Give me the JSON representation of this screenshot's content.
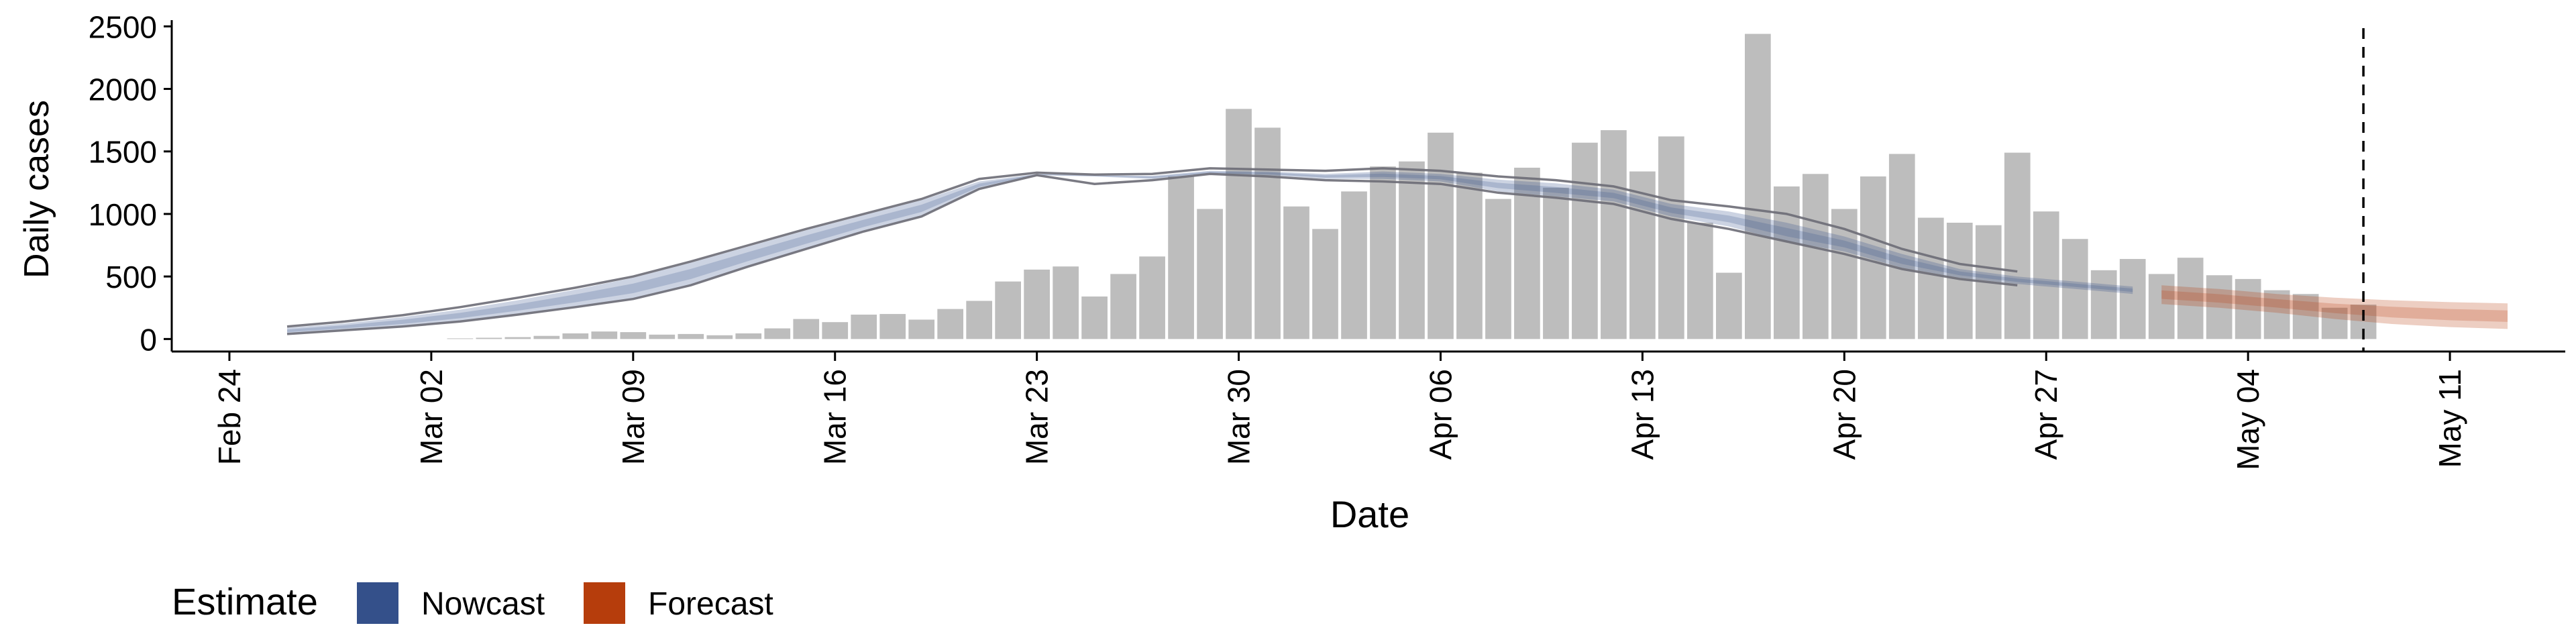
{
  "chart_data": {
    "type": "bar",
    "xlabel": "Date",
    "ylabel": "Daily cases",
    "x_axis": {
      "start": "2020-02-22",
      "end": "2020-05-15",
      "ticks": [
        "2020-02-24",
        "2020-03-02",
        "2020-03-09",
        "2020-03-16",
        "2020-03-23",
        "2020-03-30",
        "2020-04-06",
        "2020-04-13",
        "2020-04-20",
        "2020-04-27",
        "2020-05-04",
        "2020-05-11"
      ],
      "tick_labels": [
        "Feb 24",
        "Mar 02",
        "Mar 09",
        "Mar 16",
        "Mar 23",
        "Mar 30",
        "Apr 06",
        "Apr 13",
        "Apr 20",
        "Apr 27",
        "May 04",
        "May 11"
      ]
    },
    "y_axis": {
      "ylim": [
        -100,
        2550
      ],
      "ticks": [
        0,
        500,
        1000,
        1500,
        2000,
        2500
      ]
    },
    "bars": {
      "color": "#bdbdbd",
      "dates": [
        "2020-03-03",
        "2020-03-04",
        "2020-03-05",
        "2020-03-06",
        "2020-03-07",
        "2020-03-08",
        "2020-03-09",
        "2020-03-10",
        "2020-03-11",
        "2020-03-12",
        "2020-03-13",
        "2020-03-14",
        "2020-03-15",
        "2020-03-16",
        "2020-03-17",
        "2020-03-18",
        "2020-03-19",
        "2020-03-20",
        "2020-03-21",
        "2020-03-22",
        "2020-03-23",
        "2020-03-24",
        "2020-03-25",
        "2020-03-26",
        "2020-03-27",
        "2020-03-28",
        "2020-03-29",
        "2020-03-30",
        "2020-03-31",
        "2020-04-01",
        "2020-04-02",
        "2020-04-03",
        "2020-04-04",
        "2020-04-05",
        "2020-04-06",
        "2020-04-07",
        "2020-04-08",
        "2020-04-09",
        "2020-04-10",
        "2020-04-11",
        "2020-04-12",
        "2020-04-13",
        "2020-04-14",
        "2020-04-15",
        "2020-04-16",
        "2020-04-17",
        "2020-04-18",
        "2020-04-19",
        "2020-04-20",
        "2020-04-21",
        "2020-04-22",
        "2020-04-23",
        "2020-04-24",
        "2020-04-25",
        "2020-04-26",
        "2020-04-27",
        "2020-04-28",
        "2020-04-29",
        "2020-04-30",
        "2020-05-01",
        "2020-05-02",
        "2020-05-03",
        "2020-05-04",
        "2020-05-05",
        "2020-05-06",
        "2020-05-07",
        "2020-05-08"
      ],
      "values": [
        5,
        10,
        15,
        25,
        45,
        60,
        55,
        35,
        40,
        30,
        45,
        85,
        160,
        135,
        195,
        200,
        155,
        240,
        305,
        460,
        555,
        580,
        340,
        520,
        660,
        1300,
        1040,
        1840,
        1690,
        1060,
        880,
        1180,
        1380,
        1420,
        1650,
        1330,
        1120,
        1370,
        1210,
        1570,
        1670,
        1340,
        1620,
        930,
        530,
        2440,
        1220,
        1320,
        1040,
        1300,
        1480,
        970,
        930,
        910,
        1490,
        1020,
        800,
        550,
        640,
        520,
        650,
        510,
        480,
        390,
        360,
        250,
        275
      ]
    },
    "series": [
      {
        "name": "Nowcast",
        "color": "#34508a",
        "dates": [
          "2020-02-26",
          "2020-02-28",
          "2020-03-01",
          "2020-03-03",
          "2020-03-05",
          "2020-03-07",
          "2020-03-09",
          "2020-03-11",
          "2020-03-13",
          "2020-03-15",
          "2020-03-17",
          "2020-03-19",
          "2020-03-21",
          "2020-03-23",
          "2020-03-25",
          "2020-03-27",
          "2020-03-29",
          "2020-03-31",
          "2020-04-02",
          "2020-04-04",
          "2020-04-06",
          "2020-04-08",
          "2020-04-10",
          "2020-04-12",
          "2020-04-14",
          "2020-04-16",
          "2020-04-18",
          "2020-04-20",
          "2020-04-22",
          "2020-04-24",
          "2020-04-26",
          "2020-04-28",
          "2020-04-30"
        ],
        "upper": [
          90,
          125,
          175,
          235,
          310,
          395,
          490,
          610,
          740,
          870,
          990,
          1110,
          1260,
          1320,
          1310,
          1305,
          1345,
          1340,
          1320,
          1340,
          1320,
          1275,
          1245,
          1195,
          1080,
          1020,
          930,
          820,
          680,
          560,
          500,
          460,
          420
        ],
        "lower": [
          40,
          70,
          100,
          140,
          195,
          255,
          320,
          430,
          580,
          720,
          860,
          980,
          1200,
          1310,
          1300,
          1280,
          1320,
          1310,
          1280,
          1280,
          1260,
          1180,
          1140,
          1100,
          980,
          900,
          780,
          700,
          570,
          490,
          440,
          400,
          360
        ]
      },
      {
        "name": "Forecast",
        "color": "#b63d0c",
        "dates": [
          "2020-05-01",
          "2020-05-03",
          "2020-05-05",
          "2020-05-07",
          "2020-05-09",
          "2020-05-11",
          "2020-05-13"
        ],
        "upper": [
          430,
          400,
          360,
          330,
          310,
          295,
          285
        ],
        "lower": [
          280,
          250,
          210,
          160,
          120,
          95,
          80
        ]
      }
    ],
    "outer_lines": {
      "dates": [
        "2020-02-26",
        "2020-02-28",
        "2020-03-01",
        "2020-03-03",
        "2020-03-05",
        "2020-03-07",
        "2020-03-09",
        "2020-03-11",
        "2020-03-13",
        "2020-03-15",
        "2020-03-17",
        "2020-03-19",
        "2020-03-21",
        "2020-03-23",
        "2020-03-25",
        "2020-03-27",
        "2020-03-29",
        "2020-03-31",
        "2020-04-02",
        "2020-04-04",
        "2020-04-06",
        "2020-04-08",
        "2020-04-10",
        "2020-04-12",
        "2020-04-14",
        "2020-04-16",
        "2020-04-18",
        "2020-04-20",
        "2020-04-22",
        "2020-04-24",
        "2020-04-26"
      ],
      "upper": [
        100,
        140,
        190,
        255,
        330,
        410,
        500,
        620,
        750,
        880,
        1000,
        1120,
        1280,
        1330,
        1315,
        1320,
        1365,
        1355,
        1345,
        1365,
        1345,
        1300,
        1270,
        1220,
        1110,
        1060,
        1000,
        880,
        720,
        600,
        540
      ],
      "lower": [
        40,
        70,
        100,
        140,
        195,
        255,
        320,
        430,
        580,
        720,
        860,
        980,
        1200,
        1310,
        1240,
        1270,
        1320,
        1300,
        1270,
        1260,
        1240,
        1170,
        1130,
        1080,
        960,
        880,
        780,
        680,
        560,
        480,
        430
      ]
    },
    "vline": {
      "date": "2020-05-08",
      "style": "dashed"
    },
    "legend": {
      "title": "Estimate",
      "position": "bottom-left",
      "entries": [
        {
          "label": "Nowcast",
          "color": "#34508a"
        },
        {
          "label": "Forecast",
          "color": "#b63d0c"
        }
      ]
    },
    "grid": false
  }
}
